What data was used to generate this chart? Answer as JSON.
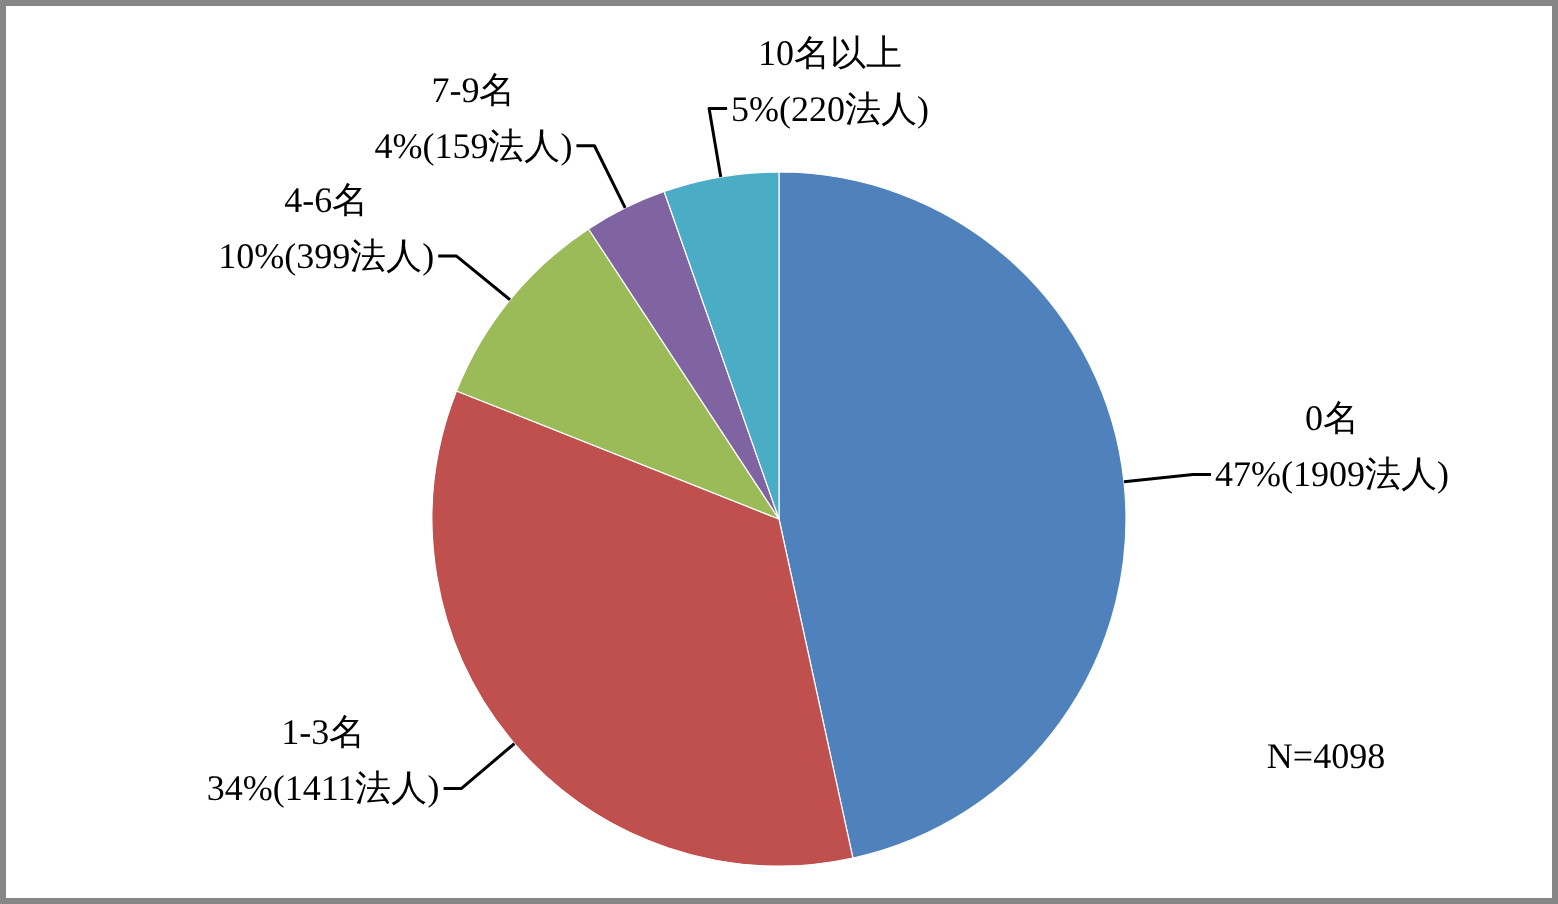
{
  "chart_data": {
    "type": "pie",
    "categories": [
      "0名",
      "1-3名",
      "4-6名",
      "7-9名",
      "10名以上"
    ],
    "values": [
      1909,
      1411,
      399,
      159,
      220
    ],
    "colors": [
      "#4f81bd",
      "#c0504d",
      "#9bbb59",
      "#8064a2",
      "#4bacc6"
    ],
    "value_labels": [
      "47%(1909法人)",
      "34%(1411法人)",
      "10%(399法人)",
      "4%(159法人)",
      "5%(220法人)"
    ],
    "annotations": [
      "N=4098"
    ]
  }
}
